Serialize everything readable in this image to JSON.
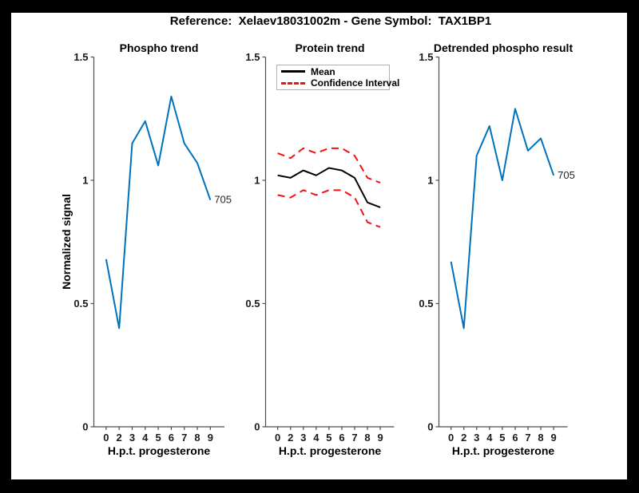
{
  "figure": {
    "title": "Reference:  Xelaev18031002m - Gene Symbol:  TAX1BP1",
    "background_color": "#ffffff",
    "frame_color": "#000000",
    "axis_color": "#4d4d4d",
    "tick_text_color": "#1a1a1a"
  },
  "chart_data": [
    {
      "type": "line",
      "title": "Phospho trend",
      "xlabel": "H.p.t. progesterone",
      "ylabel": "Normalized signal",
      "x_values": [
        0,
        2,
        3,
        4,
        5,
        6,
        7,
        8,
        9
      ],
      "x_tick_labels": [
        "0",
        "2",
        "3",
        "4",
        "5",
        "6",
        "7",
        "8",
        "9"
      ],
      "yticks": [
        0,
        0.5,
        1,
        1.5
      ],
      "y_tick_labels": [
        "0",
        "0.5",
        "1",
        "1.5"
      ],
      "ylim": [
        0,
        1.5
      ],
      "grid": false,
      "series": [
        {
          "name": "phospho-signal",
          "color": "#0072BD",
          "dash": "solid",
          "values": [
            0.68,
            0.4,
            1.15,
            1.24,
            1.06,
            1.34,
            1.15,
            1.07,
            0.92
          ]
        }
      ],
      "end_label": "705"
    },
    {
      "type": "line",
      "title": "Protein trend",
      "xlabel": "H.p.t. progesterone",
      "x_values": [
        0,
        2,
        3,
        4,
        5,
        6,
        7,
        8,
        9
      ],
      "x_tick_labels": [
        "0",
        "2",
        "3",
        "4",
        "5",
        "6",
        "7",
        "8",
        "9"
      ],
      "yticks": [
        0,
        0.5,
        1,
        1.5
      ],
      "y_tick_labels": [
        "0",
        "0.5",
        "1",
        "1.5"
      ],
      "ylim": [
        0,
        1.5
      ],
      "grid": false,
      "legend_position": "top-left",
      "legend": [
        {
          "label": "Mean",
          "color": "#000000",
          "dash": "solid"
        },
        {
          "label": "Confidence Interval",
          "color": "#f31111",
          "dash": "dashed"
        }
      ],
      "series": [
        {
          "name": "ci-upper",
          "color": "#f31111",
          "dash": "dashed",
          "values": [
            1.11,
            1.09,
            1.13,
            1.11,
            1.13,
            1.13,
            1.1,
            1.01,
            0.99
          ]
        },
        {
          "name": "ci-lower",
          "color": "#f31111",
          "dash": "dashed",
          "values": [
            0.94,
            0.93,
            0.96,
            0.94,
            0.96,
            0.96,
            0.93,
            0.83,
            0.81
          ]
        },
        {
          "name": "mean",
          "color": "#000000",
          "dash": "solid",
          "values": [
            1.02,
            1.01,
            1.04,
            1.02,
            1.05,
            1.04,
            1.01,
            0.91,
            0.89
          ]
        }
      ],
      "end_label": ""
    },
    {
      "type": "line",
      "title": "Detrended phospho result",
      "xlabel": "H.p.t. progesterone",
      "x_values": [
        0,
        2,
        3,
        4,
        5,
        6,
        7,
        8,
        9
      ],
      "x_tick_labels": [
        "0",
        "2",
        "3",
        "4",
        "5",
        "6",
        "7",
        "8",
        "9"
      ],
      "yticks": [
        0,
        0.5,
        1,
        1.5
      ],
      "y_tick_labels": [
        "0",
        "0.5",
        "1",
        "1.5"
      ],
      "ylim": [
        0,
        1.5
      ],
      "grid": false,
      "series": [
        {
          "name": "detrended-phospho-signal",
          "color": "#0072BD",
          "dash": "solid",
          "values": [
            0.67,
            0.4,
            1.1,
            1.22,
            1.0,
            1.29,
            1.12,
            1.17,
            1.02
          ]
        }
      ],
      "end_label": "705"
    }
  ]
}
